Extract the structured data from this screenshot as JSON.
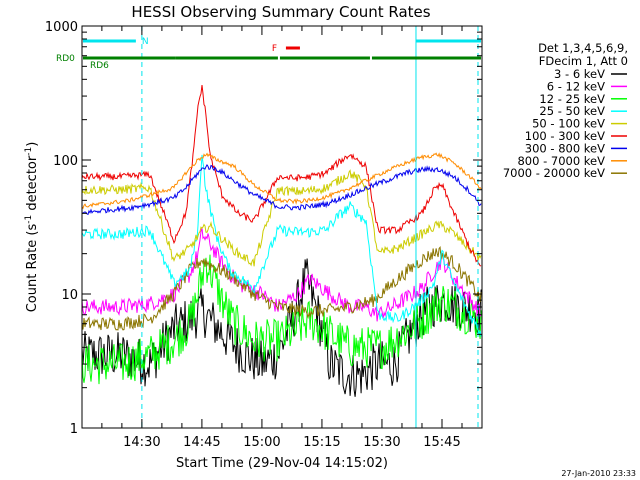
{
  "chart_data": {
    "type": "line",
    "title": "HESSI Observing Summary Count Rates",
    "xlabel": "Start Time (29-Nov-04 14:15:02)",
    "ylabel": "Count Rate (s^-1 detector^-1)",
    "ylabel_parts": {
      "main": "Count Rate (s",
      "sup1": "-1",
      "mid": " detector",
      "sup2": "-1",
      "end": ")"
    },
    "y_scale": "log",
    "ylim": [
      1,
      1000
    ],
    "xlim": [
      "14:15:02",
      "15:55:00"
    ],
    "x_tick_labels": [
      "14:30",
      "14:45",
      "15:00",
      "15:15",
      "15:30",
      "15:45"
    ],
    "y_tick_labels": [
      "1",
      "10",
      "100",
      "1000"
    ],
    "grid": false,
    "legend_position": "right",
    "legend_header": [
      "Det 1,3,4,5,6,9,",
      "FDecim 1, Att 0"
    ],
    "footer_stamp": "27-Jan-2010 23:33",
    "flags": [
      {
        "label": "N",
        "color": "#00e5ee",
        "segments": [
          [
            "14:15:02",
            "14:28:30"
          ],
          [
            "15:38:30",
            "15:55:00"
          ]
        ]
      },
      {
        "label": "F",
        "color": "#ee0000",
        "segments": [
          [
            "15:06:00",
            "15:09:30"
          ]
        ]
      },
      {
        "label": "RD0",
        "color": "#008000",
        "segments": [
          [
            "14:15:02",
            "14:38:30"
          ],
          [
            "15:04:30",
            "15:27:00"
          ]
        ]
      },
      {
        "label": "RD6",
        "color": "#008000",
        "segments": [
          [
            "14:38:30",
            "15:04:00"
          ],
          [
            "15:27:30",
            "15:55:00"
          ]
        ]
      }
    ],
    "series": [
      {
        "name": "3 - 6 keV",
        "color": "#000000",
        "x": [
          "14:15",
          "14:25",
          "14:32",
          "14:38",
          "14:42",
          "14:45",
          "14:48",
          "14:52",
          "14:56",
          "15:00",
          "15:04",
          "15:08",
          "15:11",
          "15:14",
          "15:17",
          "15:21",
          "15:25",
          "15:29",
          "15:33",
          "15:37",
          "15:40",
          "15:43",
          "15:46",
          "15:50",
          "15:55"
        ],
        "values": [
          3.5,
          3.5,
          3.0,
          5.5,
          6.5,
          7.5,
          6.0,
          4.5,
          3.5,
          3.0,
          3.5,
          7.0,
          13,
          7.0,
          3.0,
          2.5,
          2.5,
          3.0,
          3.0,
          5.0,
          7.0,
          8.5,
          9.0,
          8.0,
          7.5
        ]
      },
      {
        "name": "6 - 12 keV",
        "color": "#ff00ff",
        "x": [
          "14:15",
          "14:25",
          "14:32",
          "14:38",
          "14:42",
          "14:44",
          "14:45",
          "14:47",
          "14:50",
          "14:54",
          "15:00",
          "15:04",
          "15:09",
          "15:12",
          "15:17",
          "15:22",
          "15:26",
          "15:29",
          "15:34",
          "15:40",
          "15:43",
          "15:45",
          "15:48",
          "15:51",
          "15:55"
        ],
        "values": [
          8.0,
          8.0,
          8.5,
          10,
          14,
          20,
          28,
          24,
          17,
          12,
          10,
          8.0,
          10,
          13,
          10,
          8.0,
          8.0,
          7.0,
          8.5,
          11,
          15,
          18,
          13,
          10,
          7.0
        ]
      },
      {
        "name": "12 - 25 keV",
        "color": "#00ff00",
        "x": [
          "14:15",
          "14:25",
          "14:32",
          "14:38",
          "14:42",
          "14:44",
          "14:46",
          "14:48",
          "14:50",
          "14:53",
          "14:58",
          "15:04",
          "15:09",
          "15:12",
          "15:17",
          "15:22",
          "15:26",
          "15:30",
          "15:35",
          "15:40",
          "15:43",
          "15:45",
          "15:48",
          "15:52",
          "15:55"
        ],
        "values": [
          3.0,
          3.0,
          3.5,
          4.5,
          6.0,
          10,
          18,
          13,
          9.0,
          6.0,
          4.5,
          4.5,
          5.5,
          6.5,
          5.0,
          4.0,
          4.0,
          4.0,
          5.0,
          6.5,
          8.0,
          9.0,
          8.0,
          7.0,
          6.0
        ]
      },
      {
        "name": "25 - 50 keV",
        "color": "#00ffff",
        "x": [
          "14:15",
          "14:25",
          "14:32",
          "14:38",
          "14:42",
          "14:44",
          "14:45",
          "14:46",
          "14:49",
          "14:52",
          "14:58",
          "15:04",
          "15:08",
          "15:12",
          "15:16",
          "15:19",
          "15:22",
          "15:26",
          "15:29",
          "15:34",
          "15:40",
          "15:43",
          "15:45",
          "15:48",
          "15:52",
          "15:55"
        ],
        "values": [
          28,
          28,
          30,
          12,
          15,
          30,
          120,
          60,
          25,
          15,
          11,
          30,
          29,
          29,
          30,
          38,
          45,
          35,
          7.0,
          6.5,
          9.0,
          12,
          20,
          12,
          7.0,
          5.0
        ]
      },
      {
        "name": "50 - 100 keV",
        "color": "#cccc00",
        "x": [
          "14:15",
          "14:25",
          "14:32",
          "14:38",
          "14:42",
          "14:45",
          "14:47",
          "14:50",
          "14:54",
          "14:58",
          "15:04",
          "15:08",
          "15:12",
          "15:16",
          "15:19",
          "15:22",
          "15:26",
          "15:29",
          "15:34",
          "15:40",
          "15:44",
          "15:47",
          "15:51",
          "15:55"
        ],
        "values": [
          60,
          60,
          62,
          18,
          22,
          30,
          32,
          26,
          20,
          17,
          60,
          58,
          59,
          62,
          70,
          80,
          65,
          20,
          22,
          28,
          33,
          30,
          23,
          18
        ]
      },
      {
        "name": "100 - 300 keV",
        "color": "#ee0000",
        "x": [
          "14:15",
          "14:25",
          "14:32",
          "14:38",
          "14:41",
          "14:43",
          "14:44",
          "14:45",
          "14:46",
          "14:47",
          "14:50",
          "14:54",
          "14:58",
          "15:04",
          "15:08",
          "15:12",
          "15:16",
          "15:19",
          "15:22",
          "15:26",
          "15:29",
          "15:34",
          "15:40",
          "15:43",
          "15:45",
          "15:48",
          "15:52",
          "15:55"
        ],
        "values": [
          75,
          75,
          78,
          25,
          40,
          120,
          250,
          350,
          220,
          110,
          55,
          40,
          35,
          75,
          73,
          75,
          80,
          95,
          110,
          90,
          30,
          30,
          40,
          60,
          65,
          40,
          22,
          15
        ]
      },
      {
        "name": "300 - 800 keV",
        "color": "#0000ee",
        "x": [
          "14:15",
          "14:20",
          "14:27",
          "14:32",
          "14:38",
          "14:41",
          "14:44",
          "14:46",
          "14:49",
          "14:53",
          "14:58",
          "15:04",
          "15:08",
          "15:12",
          "15:16",
          "15:20",
          "15:24",
          "15:28",
          "15:32",
          "15:36",
          "15:40",
          "15:44",
          "15:48",
          "15:52",
          "15:55"
        ],
        "values": [
          40,
          42,
          44,
          47,
          52,
          62,
          80,
          90,
          85,
          70,
          55,
          45,
          44,
          45,
          47,
          52,
          58,
          65,
          72,
          80,
          85,
          85,
          75,
          58,
          45
        ]
      },
      {
        "name": "800 - 7000 keV",
        "color": "#ff8c00",
        "x": [
          "14:15",
          "14:20",
          "14:27",
          "14:32",
          "14:38",
          "14:41",
          "14:44",
          "14:46",
          "14:49",
          "14:53",
          "14:58",
          "15:04",
          "15:08",
          "15:12",
          "15:16",
          "15:20",
          "15:24",
          "15:28",
          "15:32",
          "15:36",
          "15:40",
          "15:44",
          "15:48",
          "15:52",
          "15:55"
        ],
        "values": [
          45,
          47,
          50,
          55,
          62,
          80,
          100,
          110,
          100,
          90,
          65,
          50,
          49,
          50,
          53,
          58,
          66,
          75,
          85,
          95,
          105,
          110,
          95,
          75,
          60
        ]
      },
      {
        "name": "7000 - 20000 keV",
        "color": "#8b7500",
        "x": [
          "14:15",
          "14:25",
          "14:32",
          "14:38",
          "14:42",
          "14:45",
          "14:48",
          "14:52",
          "14:58",
          "15:04",
          "15:10",
          "15:16",
          "15:22",
          "15:28",
          "15:34",
          "15:40",
          "15:44",
          "15:48",
          "15:52",
          "15:55"
        ],
        "values": [
          6.0,
          6.0,
          6.5,
          10,
          15,
          18,
          16,
          14,
          10,
          8.0,
          7.5,
          7.5,
          8.0,
          9.0,
          13,
          18,
          21,
          17,
          12,
          9.0
        ]
      }
    ]
  }
}
